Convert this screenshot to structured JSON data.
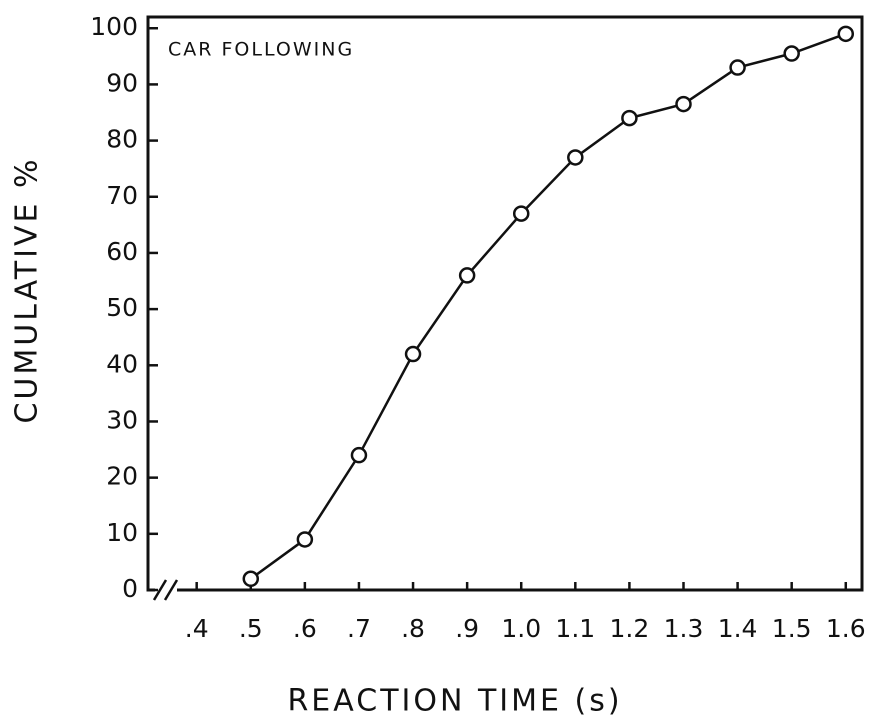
{
  "chart_data": {
    "type": "line",
    "annotation": "CAR FOLLOWING",
    "x_label": "REACTION TIME (s)",
    "y_label": "CUMULATIVE %",
    "x": [
      0.5,
      0.6,
      0.7,
      0.8,
      0.9,
      1.0,
      1.1,
      1.2,
      1.3,
      1.4,
      1.5,
      1.6
    ],
    "series": [
      {
        "name": "CAR FOLLOWING",
        "color": "#111111",
        "values": [
          2,
          9,
          24,
          42,
          56,
          67,
          77,
          84,
          86.5,
          93,
          95.5,
          99
        ]
      }
    ],
    "xlim": [
      0.31,
      1.63
    ],
    "ylim": [
      0,
      102
    ],
    "xticks": [
      {
        "value": 0.4,
        "label": ".4"
      },
      {
        "value": 0.5,
        "label": ".5"
      },
      {
        "value": 0.6,
        "label": ".6"
      },
      {
        "value": 0.7,
        "label": ".7"
      },
      {
        "value": 0.8,
        "label": ".8"
      },
      {
        "value": 0.9,
        "label": ".9"
      },
      {
        "value": 1.0,
        "label": "1.0"
      },
      1.1,
      1.2,
      1.3,
      1.4,
      1.5,
      1.6
    ],
    "yticks": [
      0,
      10,
      20,
      30,
      40,
      50,
      60,
      70,
      80,
      90,
      100
    ],
    "grid": false
  }
}
